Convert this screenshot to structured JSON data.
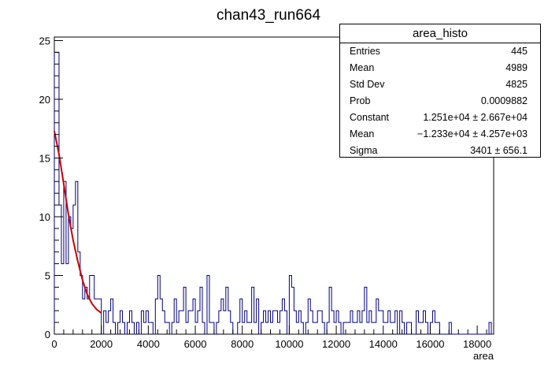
{
  "chart_data": {
    "type": "histogram",
    "title": "chan43_run664",
    "xlabel": "area",
    "ylabel": "",
    "xlim": [
      0,
      18700
    ],
    "ylim": [
      0,
      25.3
    ],
    "bin_width": 100,
    "x_ticks": [
      "0",
      "2000",
      "4000",
      "6000",
      "8000",
      "10000",
      "12000",
      "14000",
      "16000",
      "18000"
    ],
    "y_ticks": [
      "0",
      "5",
      "10",
      "15",
      "20",
      "25"
    ],
    "bins": [
      [
        0,
        24
      ],
      [
        100,
        24
      ],
      [
        200,
        11
      ],
      [
        300,
        6
      ],
      [
        400,
        13
      ],
      [
        500,
        6
      ],
      [
        600,
        10
      ],
      [
        700,
        9
      ],
      [
        800,
        11
      ],
      [
        900,
        13
      ],
      [
        1000,
        7
      ],
      [
        1100,
        5
      ],
      [
        1200,
        3
      ],
      [
        1300,
        4
      ],
      [
        1400,
        3
      ],
      [
        1500,
        5
      ],
      [
        1600,
        5
      ],
      [
        1700,
        3
      ],
      [
        1800,
        3
      ],
      [
        1900,
        3
      ],
      [
        2000,
        0
      ],
      [
        2100,
        2
      ],
      [
        2200,
        1
      ],
      [
        2300,
        2
      ],
      [
        2400,
        3
      ],
      [
        2500,
        1
      ],
      [
        2600,
        0
      ],
      [
        2700,
        1
      ],
      [
        2800,
        2
      ],
      [
        2900,
        1
      ],
      [
        3000,
        0
      ],
      [
        3100,
        1
      ],
      [
        3200,
        2
      ],
      [
        3300,
        1
      ],
      [
        3400,
        0
      ],
      [
        3500,
        1
      ],
      [
        3600,
        0
      ],
      [
        3700,
        2
      ],
      [
        3800,
        1
      ],
      [
        3900,
        2
      ],
      [
        4000,
        1
      ],
      [
        4100,
        1
      ],
      [
        4200,
        0
      ],
      [
        4300,
        3
      ],
      [
        4400,
        5
      ],
      [
        4500,
        3
      ],
      [
        4600,
        2
      ],
      [
        4700,
        1
      ],
      [
        4800,
        1
      ],
      [
        4900,
        0
      ],
      [
        5000,
        1
      ],
      [
        5100,
        3
      ],
      [
        5200,
        1
      ],
      [
        5300,
        2
      ],
      [
        5400,
        2
      ],
      [
        5500,
        4
      ],
      [
        5600,
        1
      ],
      [
        5700,
        2
      ],
      [
        5800,
        2
      ],
      [
        5900,
        3
      ],
      [
        6000,
        1
      ],
      [
        6100,
        2
      ],
      [
        6200,
        4
      ],
      [
        6300,
        1
      ],
      [
        6400,
        0
      ],
      [
        6500,
        5
      ],
      [
        6600,
        1
      ],
      [
        6700,
        1
      ],
      [
        6800,
        0
      ],
      [
        6900,
        1
      ],
      [
        7000,
        2
      ],
      [
        7100,
        3
      ],
      [
        7200,
        2
      ],
      [
        7300,
        4
      ],
      [
        7400,
        2
      ],
      [
        7500,
        1
      ],
      [
        7600,
        0
      ],
      [
        7700,
        0
      ],
      [
        7800,
        1
      ],
      [
        7900,
        3
      ],
      [
        8000,
        1
      ],
      [
        8100,
        2
      ],
      [
        8200,
        1
      ],
      [
        8300,
        1
      ],
      [
        8400,
        4
      ],
      [
        8500,
        1
      ],
      [
        8600,
        3
      ],
      [
        8700,
        0
      ],
      [
        8800,
        1
      ],
      [
        8900,
        2
      ],
      [
        9000,
        1
      ],
      [
        9100,
        2
      ],
      [
        9200,
        1
      ],
      [
        9300,
        2
      ],
      [
        9400,
        2
      ],
      [
        9500,
        1
      ],
      [
        9600,
        2
      ],
      [
        9700,
        3
      ],
      [
        9800,
        2
      ],
      [
        9900,
        0
      ],
      [
        10000,
        5
      ],
      [
        10100,
        4
      ],
      [
        10200,
        2
      ],
      [
        10300,
        1
      ],
      [
        10400,
        2
      ],
      [
        10500,
        1
      ],
      [
        10600,
        0
      ],
      [
        10700,
        1
      ],
      [
        10800,
        3
      ],
      [
        10900,
        2
      ],
      [
        11000,
        1
      ],
      [
        11100,
        1
      ],
      [
        11200,
        2
      ],
      [
        11300,
        2
      ],
      [
        11400,
        1
      ],
      [
        11500,
        0
      ],
      [
        11600,
        1
      ],
      [
        11700,
        4
      ],
      [
        11800,
        2
      ],
      [
        11900,
        1
      ],
      [
        12000,
        2
      ],
      [
        12100,
        1
      ],
      [
        12200,
        0
      ],
      [
        12300,
        1
      ],
      [
        12400,
        1
      ],
      [
        12500,
        1
      ],
      [
        12600,
        2
      ],
      [
        12700,
        1
      ],
      [
        12800,
        1
      ],
      [
        12900,
        2
      ],
      [
        13000,
        1
      ],
      [
        13100,
        2
      ],
      [
        13200,
        4
      ],
      [
        13300,
        1
      ],
      [
        13400,
        2
      ],
      [
        13500,
        1
      ],
      [
        13600,
        1
      ],
      [
        13700,
        3
      ],
      [
        13800,
        2
      ],
      [
        13900,
        2
      ],
      [
        14000,
        1
      ],
      [
        14100,
        1
      ],
      [
        14200,
        2
      ],
      [
        14300,
        1
      ],
      [
        14400,
        1
      ],
      [
        14500,
        2
      ],
      [
        14600,
        0
      ],
      [
        14700,
        2
      ],
      [
        14800,
        1
      ],
      [
        14900,
        0
      ],
      [
        15000,
        1
      ],
      [
        15100,
        1
      ],
      [
        15200,
        0
      ],
      [
        15300,
        0
      ],
      [
        15400,
        2
      ],
      [
        15500,
        1
      ],
      [
        15600,
        1
      ],
      [
        15700,
        2
      ],
      [
        15800,
        1
      ],
      [
        15900,
        0
      ],
      [
        16000,
        1
      ],
      [
        16100,
        2
      ],
      [
        16200,
        1
      ],
      [
        16300,
        1
      ],
      [
        16400,
        0
      ],
      [
        16500,
        0
      ],
      [
        16600,
        0
      ],
      [
        16700,
        0
      ],
      [
        16800,
        1
      ],
      [
        16900,
        0
      ],
      [
        17000,
        0
      ],
      [
        17100,
        0
      ],
      [
        17200,
        0
      ],
      [
        17300,
        0
      ],
      [
        17400,
        0
      ],
      [
        17500,
        0
      ],
      [
        17600,
        0
      ],
      [
        17700,
        0
      ],
      [
        17800,
        0
      ],
      [
        17900,
        0
      ],
      [
        18000,
        0
      ],
      [
        18100,
        0
      ],
      [
        18200,
        0
      ],
      [
        18300,
        0
      ],
      [
        18400,
        0
      ],
      [
        18500,
        1
      ],
      [
        18600,
        0
      ]
    ],
    "fit": {
      "type": "exponential",
      "x_range": [
        0,
        2000
      ],
      "points": [
        [
          0,
          17.3
        ],
        [
          200,
          15.3
        ],
        [
          400,
          12.8
        ],
        [
          600,
          10.2
        ],
        [
          800,
          8.0
        ],
        [
          1000,
          6.2
        ],
        [
          1200,
          4.6
        ],
        [
          1400,
          3.4
        ],
        [
          1600,
          2.6
        ],
        [
          1800,
          2.1
        ],
        [
          2000,
          1.8
        ]
      ]
    },
    "grid": false,
    "legend": "top-right",
    "colors": {
      "histogram": "#000080",
      "fit": "#cc0000",
      "axis": "#000000"
    }
  },
  "stats": {
    "title": "area_histo",
    "rows": [
      {
        "key": "Entries",
        "value": "445"
      },
      {
        "key": "Mean",
        "value": "4989"
      },
      {
        "key": "Std Dev",
        "value": "4825"
      },
      {
        "key": "Prob",
        "value": "0.0009882"
      },
      {
        "key": "Constant",
        "value": "1.251e+04 ± 2.667e+04"
      },
      {
        "key": "Mean",
        "value": "−1.233e+04 ± 4.257e+03"
      },
      {
        "key": "Sigma",
        "value": "3401 ± 656.1"
      }
    ]
  }
}
